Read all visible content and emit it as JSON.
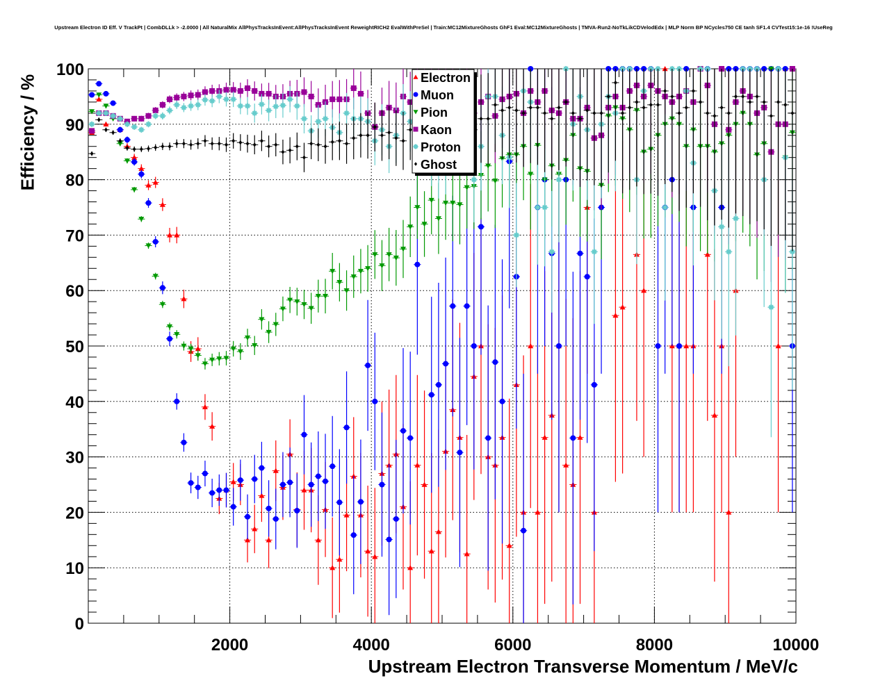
{
  "chart_data": {
    "type": "scatter",
    "title": "Upstream Electron ID Eff. V TrackPt | CombDLLk > -2.0000 | All NaturalMix AllPhysTracksInEvent:AllPhysTracksInEvent ReweightRICH2 EvalWithPreSel | Train:MC12MixtureGhosts GhF1 Eval:MC12MixtureGhosts | TMVA-Run2-NoTkLikCDVelodEdx | MLP Norm BP NCycles750 CE tanh SF1.4 CVTest15:1e-16 !UseReg",
    "xlabel": "Upstream Electron Transverse Momentum / MeV/c",
    "ylabel": "Efficiency / %",
    "xlim": [
      0,
      10000
    ],
    "ylim": [
      0,
      100
    ],
    "xticks": [
      "2000",
      "4000",
      "6000",
      "8000",
      "10000"
    ],
    "yticks": [
      "0",
      "10",
      "20",
      "30",
      "40",
      "50",
      "60",
      "70",
      "80",
      "90",
      "100"
    ],
    "grid": true,
    "legend_position": "top-center",
    "bin_width": 100,
    "x_start": 50,
    "series": [
      {
        "name": "Electron",
        "color": "#ff0000",
        "marker": "triangle-up",
        "values": [
          88.5,
          94.5,
          90,
          null,
          89,
          86,
          84,
          82,
          79,
          79.5,
          75.5,
          70,
          70,
          58.5,
          49,
          49.5,
          39,
          35.5,
          22.5,
          24,
          25.5,
          25,
          15,
          17,
          23,
          15,
          27.5,
          24.5,
          30.5,
          20.5,
          24,
          24,
          15,
          20.5,
          10,
          11.5,
          19.5,
          26.5,
          19.5,
          13,
          12,
          27,
          28.5,
          30.5,
          21,
          10,
          28.5,
          25,
          13,
          16.5,
          31,
          38.5,
          33.5,
          12.5,
          44.5,
          50,
          30,
          28.5,
          33.5,
          14,
          43,
          20,
          50,
          20,
          33.5,
          37.5,
          50,
          28.5,
          25,
          33.5,
          75,
          20,
          null,
          null,
          55.5,
          57,
          100,
          66.5,
          60,
          100,
          null,
          100,
          50,
          50,
          50,
          50,
          null,
          66.5,
          37.5,
          50,
          20,
          60,
          null,
          null,
          null,
          null,
          null,
          50,
          100,
          100
        ]
      },
      {
        "name": "Muon",
        "color": "#0000ff",
        "marker": "circle",
        "values": [
          95.3,
          97.3,
          95.5,
          93.8,
          89,
          87.2,
          83.2,
          81,
          75.8,
          68.8,
          60.5,
          51.3,
          40,
          32.6,
          25.3,
          24.5,
          27,
          23.5,
          24,
          24,
          21,
          25.8,
          19.2,
          26,
          28,
          20.7,
          18.8,
          25,
          25.4,
          20.3,
          34,
          25,
          26.5,
          25.6,
          28.3,
          21.8,
          35.3,
          15.9,
          21.9,
          46.5,
          40,
          25,
          15.1,
          18.8,
          34.7,
          33.4,
          64.7,
          null,
          41.2,
          43,
          46.8,
          57.2,
          30.8,
          57.2,
          50,
          71.5,
          33.4,
          47.1,
          40,
          83.3,
          62.5,
          16.7,
          100,
          75,
          80,
          66.7,
          50,
          80,
          33.4,
          66.7,
          62.5,
          43,
          75,
          100,
          100,
          100,
          100,
          100,
          100,
          100,
          50,
          75,
          80,
          50,
          100,
          75,
          100,
          100,
          null,
          75,
          100,
          100,
          100,
          100,
          100,
          100,
          100,
          100,
          100,
          50
        ]
      },
      {
        "name": "Pion",
        "color": "#009900",
        "marker": "triangle-down",
        "values": [
          92.3,
          95.3,
          93.3,
          91,
          86.5,
          83.4,
          78.2,
          72.9,
          68.1,
          62.6,
          57.5,
          53.5,
          52.1,
          50,
          49.5,
          48.3,
          46.8,
          47.5,
          47.7,
          47.8,
          49.5,
          49,
          51.5,
          50.1,
          54.8,
          52.5,
          53.9,
          56.7,
          58.3,
          58,
          57.5,
          56.8,
          59,
          59,
          63.5,
          61.5,
          60,
          62.5,
          63.5,
          64,
          66.5,
          64.5,
          66.5,
          65.9,
          67.5,
          71.5,
          75,
          72,
          76.3,
          73,
          75.8,
          75.8,
          75.5,
          78.6,
          78.8,
          80.8,
          82.5,
          79.8,
          83.8,
          84.5,
          84.5,
          86,
          81,
          86.2,
          80,
          82.5,
          81,
          83.5,
          88,
          82,
          81.5,
          87.5,
          79,
          91.5,
          93,
          91,
          89,
          92.5,
          85,
          85.5,
          88,
          90,
          91,
          90,
          86,
          89,
          86,
          86,
          85,
          86.5,
          88,
          90,
          92,
          90,
          84.5,
          86.5,
          100,
          90,
          84,
          88.5
        ]
      },
      {
        "name": "Kaon",
        "color": "#990099",
        "marker": "square",
        "values": [
          88.8,
          92,
          92,
          91.5,
          91,
          90.5,
          91,
          91,
          91.5,
          92.5,
          93.5,
          94.5,
          94.8,
          95,
          95.2,
          95.3,
          95.8,
          96,
          96,
          96.2,
          96.2,
          96,
          96.5,
          96,
          95.5,
          95.5,
          95,
          95,
          95.5,
          95.5,
          95.8,
          95,
          93.5,
          94,
          94.5,
          94.5,
          94.5,
          96.5,
          95.5,
          92,
          89.5,
          92,
          93,
          92.5,
          95,
          94,
          95,
          94.5,
          96.5,
          97,
          96.5,
          93.5,
          95,
          95.5,
          92,
          94,
          95,
          91.5,
          94.5,
          95,
          95.5,
          92,
          96,
          94,
          96,
          92.5,
          92,
          94,
          91,
          91,
          93,
          87.5,
          88,
          93,
          95,
          93,
          96,
          97,
          95,
          97,
          96,
          95,
          94,
          95,
          96,
          94,
          100,
          97,
          90,
          100,
          89,
          94,
          96,
          95,
          92,
          93,
          85,
          90,
          90,
          100
        ]
      },
      {
        "name": "Proton",
        "color": "#66cccc",
        "marker": "star",
        "values": [
          90,
          92,
          92,
          91.5,
          91,
          90,
          89.5,
          89,
          90,
          91.5,
          91.5,
          92.5,
          93.5,
          93,
          93.3,
          93.5,
          94.4,
          94.2,
          95,
          94.5,
          94.5,
          93.3,
          93.3,
          92,
          93.6,
          92.5,
          93.2,
          93.4,
          94.5,
          93.3,
          91,
          88.8,
          90.5,
          91,
          89.4,
          88.5,
          92,
          91,
          91,
          90.5,
          87,
          89,
          86,
          88,
          92,
          90.5,
          87,
          91,
          85,
          83,
          84,
          93,
          93,
          92,
          80,
          86,
          95,
          95,
          88,
          84,
          70,
          96,
          94,
          75,
          75,
          67,
          80,
          100,
          90,
          95,
          89,
          67,
          90,
          95,
          92,
          100,
          100,
          80,
          96,
          100,
          100,
          75,
          100,
          100,
          96,
          83,
          100,
          100,
          78,
          71.5,
          67,
          73,
          100,
          100,
          100,
          80,
          57,
          100,
          84,
          67
        ]
      },
      {
        "name": "Ghost",
        "color": "#000000",
        "marker": "diamond",
        "values": [
          84.7,
          90.8,
          89,
          88.5,
          87,
          85.7,
          85.5,
          85.5,
          85.6,
          85.8,
          86,
          86,
          86.5,
          86.5,
          86.3,
          86.5,
          87,
          86.5,
          86.5,
          86.3,
          87,
          86.7,
          86.5,
          86.3,
          87,
          86,
          86.3,
          85,
          85.3,
          86,
          84,
          86.5,
          86.3,
          86,
          86.8,
          87,
          86.5,
          87.5,
          88,
          88,
          89.5,
          88,
          88.5,
          87.5,
          87,
          89,
          89.5,
          90,
          89,
          89.5,
          89.5,
          90,
          91,
          90.5,
          89,
          91,
          91,
          93.5,
          92.5,
          93,
          92.5,
          92,
          93,
          93,
          92,
          91,
          93,
          94,
          92,
          91,
          92.5,
          92,
          92,
          95,
          97.5,
          92,
          93,
          94,
          93,
          93.5,
          93.5,
          96,
          95,
          92,
          93,
          96,
          94,
          92,
          91.5,
          93,
          92,
          95,
          95,
          94,
          95,
          94,
          91.5,
          94,
          93.5,
          92
        ]
      }
    ]
  }
}
